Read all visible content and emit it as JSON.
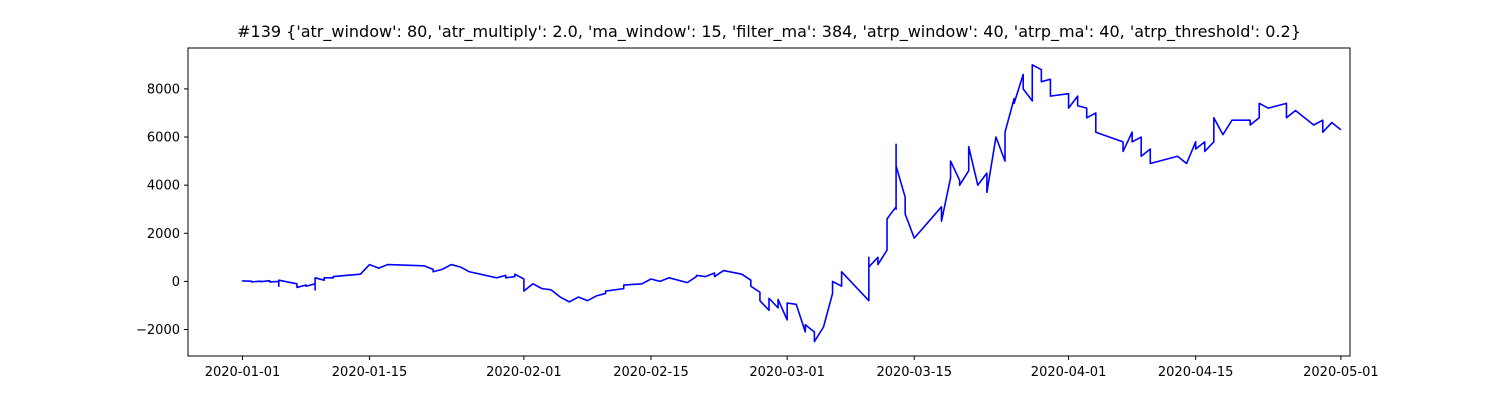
{
  "chart_data": {
    "type": "line",
    "title": "#139 {'atr_window': 80, 'atr_multiply': 2.0, 'ma_window': 15, 'filter_ma': 384, 'atrp_window': 40, 'atrp_ma': 40, 'atrp_threshold': 0.2}",
    "xlabel": "",
    "ylabel": "",
    "x_axis_type": "date",
    "xlim": [
      "2019-12-26",
      "2020-05-02"
    ],
    "ylim": [
      -3100,
      9700
    ],
    "grid": false,
    "legend": "none",
    "x_ticks": [
      "2020-01-01",
      "2020-01-15",
      "2020-02-01",
      "2020-02-15",
      "2020-03-01",
      "2020-03-15",
      "2020-04-01",
      "2020-04-15",
      "2020-05-01"
    ],
    "y_ticks": [
      -2000,
      0,
      2000,
      4000,
      6000,
      8000
    ],
    "y_tick_labels": [
      "−2000",
      "0",
      "2000",
      "4000",
      "6000",
      "8000"
    ],
    "series": [
      {
        "color": "#0000ff",
        "points": [
          [
            "2020-01-01",
            0
          ],
          [
            "2020-01-01",
            20
          ],
          [
            "2020-01-02",
            10
          ],
          [
            "2020-01-02",
            -20
          ],
          [
            "2020-01-03",
            10
          ],
          [
            "2020-01-03",
            -10
          ],
          [
            "2020-01-04",
            30
          ],
          [
            "2020-01-04",
            -20
          ],
          [
            "2020-01-05",
            0
          ],
          [
            "2020-01-05",
            -200
          ],
          [
            "2020-01-05",
            50
          ],
          [
            "2020-01-07",
            -100
          ],
          [
            "2020-01-07",
            -250
          ],
          [
            "2020-01-08",
            -150
          ],
          [
            "2020-01-08",
            -200
          ],
          [
            "2020-01-09",
            -100
          ],
          [
            "2020-01-09",
            -350
          ],
          [
            "2020-01-09",
            150
          ],
          [
            "2020-01-10",
            50
          ],
          [
            "2020-01-10",
            150
          ],
          [
            "2020-01-11",
            150
          ],
          [
            "2020-01-11",
            200
          ],
          [
            "2020-01-14",
            300
          ],
          [
            "2020-01-15",
            700
          ],
          [
            "2020-01-16",
            550
          ],
          [
            "2020-01-17",
            700
          ],
          [
            "2020-01-21",
            650
          ],
          [
            "2020-01-22",
            500
          ],
          [
            "2020-01-22",
            400
          ],
          [
            "2020-01-23",
            500
          ],
          [
            "2020-01-24",
            700
          ],
          [
            "2020-01-25",
            600
          ],
          [
            "2020-01-26",
            400
          ],
          [
            "2020-01-29",
            150
          ],
          [
            "2020-01-30",
            250
          ],
          [
            "2020-01-30",
            150
          ],
          [
            "2020-01-31",
            200
          ],
          [
            "2020-01-31",
            300
          ],
          [
            "2020-02-01",
            100
          ],
          [
            "2020-02-01",
            -400
          ],
          [
            "2020-02-02",
            -100
          ],
          [
            "2020-02-03",
            -300
          ],
          [
            "2020-02-04",
            -350
          ],
          [
            "2020-02-05",
            -650
          ],
          [
            "2020-02-06",
            -850
          ],
          [
            "2020-02-07",
            -650
          ],
          [
            "2020-02-08",
            -800
          ],
          [
            "2020-02-09",
            -600
          ],
          [
            "2020-02-10",
            -500
          ],
          [
            "2020-02-10",
            -400
          ],
          [
            "2020-02-12",
            -300
          ],
          [
            "2020-02-12",
            -150
          ],
          [
            "2020-02-14",
            -100
          ],
          [
            "2020-02-15",
            100
          ],
          [
            "2020-02-16",
            0
          ],
          [
            "2020-02-17",
            150
          ],
          [
            "2020-02-19",
            -50
          ],
          [
            "2020-02-20",
            200
          ],
          [
            "2020-02-20",
            250
          ],
          [
            "2020-02-21",
            200
          ],
          [
            "2020-02-22",
            350
          ],
          [
            "2020-02-22",
            200
          ],
          [
            "2020-02-23",
            450
          ],
          [
            "2020-02-25",
            300
          ],
          [
            "2020-02-26",
            50
          ],
          [
            "2020-02-26",
            -200
          ],
          [
            "2020-02-27",
            -450
          ],
          [
            "2020-02-27",
            -800
          ],
          [
            "2020-02-28",
            -1200
          ],
          [
            "2020-02-28",
            -700
          ],
          [
            "2020-02-29",
            -1100
          ],
          [
            "2020-02-29",
            -750
          ],
          [
            "2020-03-01",
            -1600
          ],
          [
            "2020-03-01",
            -900
          ],
          [
            "2020-03-02",
            -950
          ],
          [
            "2020-03-03",
            -2100
          ],
          [
            "2020-03-03",
            -1800
          ],
          [
            "2020-03-04",
            -2100
          ],
          [
            "2020-03-04",
            -2500
          ],
          [
            "2020-03-05",
            -1900
          ],
          [
            "2020-03-06",
            -500
          ],
          [
            "2020-03-06",
            0
          ],
          [
            "2020-03-07",
            -200
          ],
          [
            "2020-03-07",
            400
          ],
          [
            "2020-03-10",
            -800
          ],
          [
            "2020-03-10",
            1000
          ],
          [
            "2020-03-10",
            600
          ],
          [
            "2020-03-11",
            1000
          ],
          [
            "2020-03-11",
            700
          ],
          [
            "2020-03-12",
            1300
          ],
          [
            "2020-03-12",
            2600
          ],
          [
            "2020-03-13",
            3100
          ],
          [
            "2020-03-13",
            3000
          ],
          [
            "2020-03-13",
            5700
          ],
          [
            "2020-03-13",
            4800
          ],
          [
            "2020-03-14",
            3500
          ],
          [
            "2020-03-14",
            2800
          ],
          [
            "2020-03-15",
            1800
          ],
          [
            "2020-03-18",
            3100
          ],
          [
            "2020-03-18",
            2500
          ],
          [
            "2020-03-19",
            4300
          ],
          [
            "2020-03-19",
            5000
          ],
          [
            "2020-03-20",
            4200
          ],
          [
            "2020-03-20",
            4000
          ],
          [
            "2020-03-21",
            4600
          ],
          [
            "2020-03-21",
            5600
          ],
          [
            "2020-03-22",
            4000
          ],
          [
            "2020-03-23",
            4500
          ],
          [
            "2020-03-23",
            3700
          ],
          [
            "2020-03-24",
            6000
          ],
          [
            "2020-03-25",
            5000
          ],
          [
            "2020-03-25",
            6200
          ],
          [
            "2020-03-26",
            7600
          ],
          [
            "2020-03-26",
            7400
          ],
          [
            "2020-03-27",
            8600
          ],
          [
            "2020-03-27",
            8000
          ],
          [
            "2020-03-28",
            7500
          ],
          [
            "2020-03-28",
            9000
          ],
          [
            "2020-03-29",
            8800
          ],
          [
            "2020-03-29",
            8300
          ],
          [
            "2020-03-30",
            8400
          ],
          [
            "2020-03-30",
            7700
          ],
          [
            "2020-04-01",
            7800
          ],
          [
            "2020-04-01",
            7200
          ],
          [
            "2020-04-02",
            7700
          ],
          [
            "2020-04-02",
            7300
          ],
          [
            "2020-04-03",
            7200
          ],
          [
            "2020-04-03",
            6800
          ],
          [
            "2020-04-04",
            7000
          ],
          [
            "2020-04-04",
            6200
          ],
          [
            "2020-04-07",
            5800
          ],
          [
            "2020-04-07",
            5400
          ],
          [
            "2020-04-08",
            6200
          ],
          [
            "2020-04-08",
            5800
          ],
          [
            "2020-04-09",
            6000
          ],
          [
            "2020-04-09",
            5200
          ],
          [
            "2020-04-10",
            5500
          ],
          [
            "2020-04-10",
            4900
          ],
          [
            "2020-04-13",
            5200
          ],
          [
            "2020-04-14",
            4900
          ],
          [
            "2020-04-15",
            5800
          ],
          [
            "2020-04-15",
            5500
          ],
          [
            "2020-04-16",
            5800
          ],
          [
            "2020-04-16",
            5400
          ],
          [
            "2020-04-17",
            5800
          ],
          [
            "2020-04-17",
            6800
          ],
          [
            "2020-04-18",
            6100
          ],
          [
            "2020-04-19",
            6700
          ],
          [
            "2020-04-21",
            6700
          ],
          [
            "2020-04-21",
            6500
          ],
          [
            "2020-04-22",
            6800
          ],
          [
            "2020-04-22",
            7400
          ],
          [
            "2020-04-23",
            7200
          ],
          [
            "2020-04-25",
            7400
          ],
          [
            "2020-04-25",
            6800
          ],
          [
            "2020-04-26",
            7100
          ],
          [
            "2020-04-28",
            6500
          ],
          [
            "2020-04-29",
            6700
          ],
          [
            "2020-04-29",
            6200
          ],
          [
            "2020-04-30",
            6600
          ],
          [
            "2020-05-01",
            6300
          ]
        ]
      }
    ]
  }
}
